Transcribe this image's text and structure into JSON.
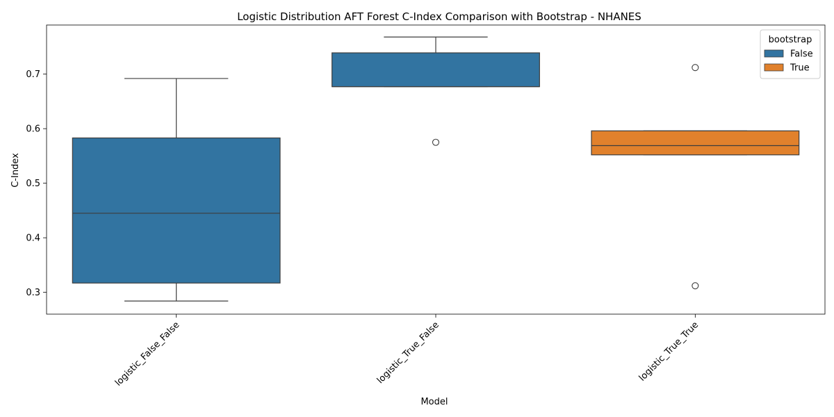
{
  "chart_data": {
    "type": "box",
    "title": "Logistic Distribution AFT Forest C-Index Comparison with Bootstrap - NHANES",
    "xlabel": "Model",
    "ylabel": "C-Index",
    "ylim": [
      0.26,
      0.79
    ],
    "yticks": [
      0.3,
      0.4,
      0.5,
      0.6,
      0.7
    ],
    "ytick_labels": [
      "0.3",
      "0.4",
      "0.5",
      "0.6",
      "0.7"
    ],
    "categories": [
      "logistic_False_False",
      "logistic_True_False",
      "logistic_True_True"
    ],
    "legend": {
      "title": "bootstrap",
      "placement": "top-right",
      "entries": [
        {
          "label": "False",
          "color": "#3274a1"
        },
        {
          "label": "True",
          "color": "#e1812c"
        }
      ]
    },
    "boxes": [
      {
        "category": "logistic_False_False",
        "bootstrap": "False",
        "color": "#3274a1",
        "whisker_low": 0.284,
        "q1": 0.317,
        "median": 0.445,
        "q3": 0.583,
        "whisker_high": 0.692,
        "outliers": []
      },
      {
        "category": "logistic_True_False",
        "bootstrap": "False",
        "color": "#3274a1",
        "whisker_low": 0.677,
        "q1": 0.677,
        "median": 0.677,
        "q3": 0.739,
        "whisker_high": 0.768,
        "outliers": [
          0.575
        ]
      },
      {
        "category": "logistic_True_True",
        "bootstrap": "True",
        "color": "#e1812c",
        "whisker_low": 0.552,
        "q1": 0.552,
        "median": 0.569,
        "q3": 0.596,
        "whisker_high": 0.596,
        "outliers": [
          0.712,
          0.312
        ]
      }
    ]
  }
}
